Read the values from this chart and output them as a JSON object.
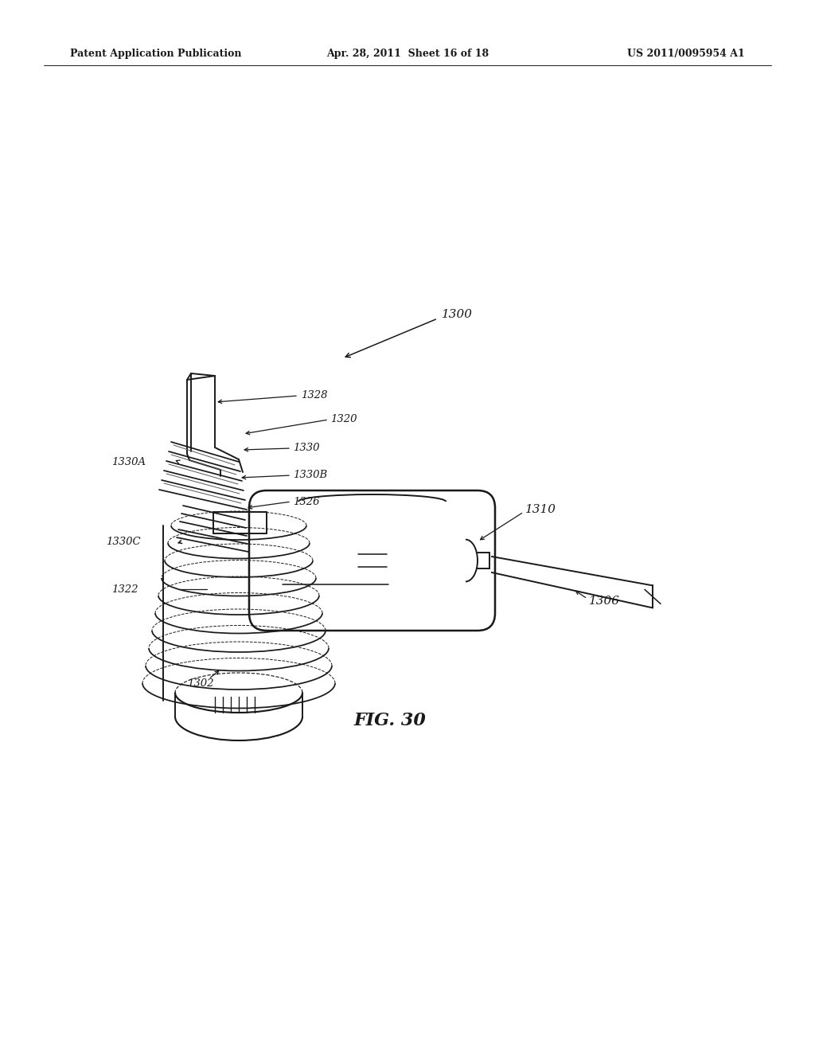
{
  "background_color": "#ffffff",
  "page_width": 10.24,
  "page_height": 13.2,
  "header_left": "Patent Application Publication",
  "header_center": "Apr. 28, 2011  Sheet 16 of 18",
  "header_right": "US 2011/0095954 A1",
  "figure_label": "FIG. 30",
  "text_color": "#1a1a1a",
  "line_color": "#1a1a1a",
  "line_width": 1.4,
  "header_fontsize": 9,
  "label_fontsize": 9.5,
  "fig_label_fontsize": 16,
  "label_1300": "1300",
  "label_1328": "1328",
  "label_1320": "1320",
  "label_1330": "1330",
  "label_1330A": "1330A",
  "label_1330B": "1330B",
  "label_1326": "1326",
  "label_1310": "1310",
  "label_1330C": "1330C",
  "label_1306": "1306",
  "label_1322": "1322",
  "label_1302": "1302"
}
